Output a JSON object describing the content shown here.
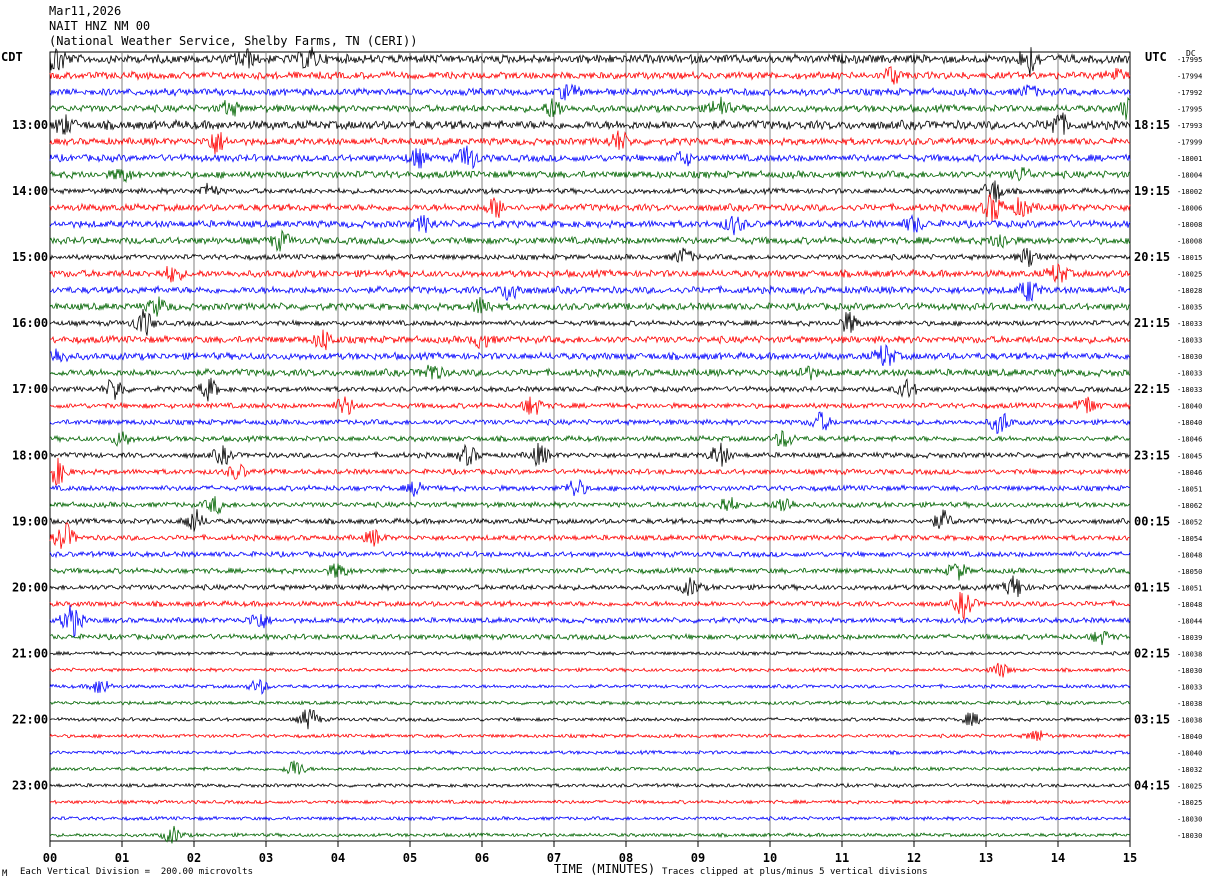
{
  "header": {
    "date": "Mar11,2026",
    "station": "NAIT HNZ NM 00",
    "location": "(National Weather Service, Shelby Farms, TN (CERI))"
  },
  "left_tz": "CDT",
  "right_tz": "UTC",
  "right_unit": "DC",
  "footer": {
    "scale_note": "Each Vertical Division =  200.00 microvolts",
    "clip_note": "Traces clipped at plus/minus 5 vertical divisions",
    "corner_mark": "M"
  },
  "colors": {
    "trace_cycle": [
      "#000000",
      "#ff0000",
      "#0000ff",
      "#006400"
    ],
    "grid": "#808080"
  },
  "chart_data": {
    "type": "line",
    "subtype": "helicorder",
    "xlabel": "TIME (MINUTES)",
    "x_ticks": [
      "00",
      "01",
      "02",
      "03",
      "04",
      "05",
      "06",
      "07",
      "08",
      "09",
      "10",
      "11",
      "12",
      "13",
      "14",
      "15"
    ],
    "xlim": [
      0,
      15
    ],
    "minutes_per_line": 15,
    "line_count": 48,
    "left_time_labels": [
      {
        "line": 4,
        "label": "13:00"
      },
      {
        "line": 8,
        "label": "14:00"
      },
      {
        "line": 12,
        "label": "15:00"
      },
      {
        "line": 16,
        "label": "16:00"
      },
      {
        "line": 20,
        "label": "17:00"
      },
      {
        "line": 24,
        "label": "18:00"
      },
      {
        "line": 28,
        "label": "19:00"
      },
      {
        "line": 32,
        "label": "20:00"
      },
      {
        "line": 36,
        "label": "21:00"
      },
      {
        "line": 40,
        "label": "22:00"
      },
      {
        "line": 44,
        "label": "23:00"
      }
    ],
    "right_time_labels": [
      {
        "line": 4,
        "label": "18:15"
      },
      {
        "line": 8,
        "label": "19:15"
      },
      {
        "line": 12,
        "label": "20:15"
      },
      {
        "line": 16,
        "label": "21:15"
      },
      {
        "line": 20,
        "label": "22:15"
      },
      {
        "line": 24,
        "label": "23:15"
      },
      {
        "line": 28,
        "label": "00:15"
      },
      {
        "line": 32,
        "label": "01:15"
      },
      {
        "line": 36,
        "label": "02:15"
      },
      {
        "line": 40,
        "label": "03:15"
      },
      {
        "line": 44,
        "label": "04:15"
      }
    ],
    "dc_offsets": [
      "-17995",
      "-17994",
      "-17992",
      "-17995",
      "-17993",
      "-17999",
      "-18001",
      "-18004",
      "-18002",
      "-18006",
      "-18008",
      "-18008",
      "-18015",
      "-18025",
      "-18028",
      "-18035",
      "-18033",
      "-18033",
      "-18030",
      "-18033",
      "-18033",
      "-18040",
      "-18040",
      "-18046",
      "-18045",
      "-18046",
      "-18051",
      "-18062",
      "-18052",
      "-18054",
      "-18048",
      "-18050",
      "-18051",
      "-18048",
      "-18044",
      "-18039",
      "-18038",
      "-18030",
      "-18033",
      "-18038",
      "-18038",
      "-18040",
      "-18040",
      "-18032",
      "-18025",
      "-18025",
      "-18030",
      "-18030"
    ],
    "noise_level": [
      5,
      4,
      4,
      4,
      5,
      4,
      4,
      4,
      3,
      4,
      4,
      4,
      3,
      4,
      4,
      4,
      3,
      4,
      4,
      4,
      3,
      3,
      3,
      3,
      3,
      3,
      3,
      3,
      3,
      3,
      3,
      3,
      3,
      3,
      3,
      3,
      2,
      2,
      2,
      2,
      2,
      2,
      2,
      2,
      2,
      2,
      2,
      2
    ],
    "events": [
      {
        "line": 0,
        "minute": 2.7,
        "amp": 9
      },
      {
        "line": 0,
        "minute": 3.6,
        "amp": 10
      },
      {
        "line": 0,
        "minute": 13.6,
        "amp": 14
      },
      {
        "line": 0,
        "minute": 0.1,
        "amp": 12
      },
      {
        "line": 1,
        "minute": 11.7,
        "amp": 8
      },
      {
        "line": 1,
        "minute": 14.8,
        "amp": 6
      },
      {
        "line": 2,
        "minute": 7.2,
        "amp": 7
      },
      {
        "line": 2,
        "minute": 13.6,
        "amp": 5
      },
      {
        "line": 3,
        "minute": 2.5,
        "amp": 7
      },
      {
        "line": 3,
        "minute": 7.0,
        "amp": 9
      },
      {
        "line": 3,
        "minute": 9.3,
        "amp": 10
      },
      {
        "line": 3,
        "minute": 15.0,
        "amp": 11
      },
      {
        "line": 4,
        "minute": 0.2,
        "amp": 8
      },
      {
        "line": 4,
        "minute": 14.0,
        "amp": 11
      },
      {
        "line": 5,
        "minute": 2.3,
        "amp": 11
      },
      {
        "line": 5,
        "minute": 7.9,
        "amp": 9
      },
      {
        "line": 6,
        "minute": 5.1,
        "amp": 8
      },
      {
        "line": 6,
        "minute": 5.8,
        "amp": 12
      },
      {
        "line": 6,
        "minute": 8.8,
        "amp": 6
      },
      {
        "line": 7,
        "minute": 1.0,
        "amp": 6
      },
      {
        "line": 7,
        "minute": 13.5,
        "amp": 6
      },
      {
        "line": 8,
        "minute": 2.2,
        "amp": 7
      },
      {
        "line": 8,
        "minute": 13.1,
        "amp": 12
      },
      {
        "line": 9,
        "minute": 6.2,
        "amp": 9
      },
      {
        "line": 9,
        "minute": 13.1,
        "amp": 13
      },
      {
        "line": 9,
        "minute": 13.5,
        "amp": 8
      },
      {
        "line": 10,
        "minute": 5.2,
        "amp": 7
      },
      {
        "line": 10,
        "minute": 9.5,
        "amp": 8
      },
      {
        "line": 10,
        "minute": 12.0,
        "amp": 7
      },
      {
        "line": 11,
        "minute": 3.2,
        "amp": 8
      },
      {
        "line": 11,
        "minute": 13.2,
        "amp": 7
      },
      {
        "line": 12,
        "minute": 8.8,
        "amp": 8
      },
      {
        "line": 12,
        "minute": 13.6,
        "amp": 9
      },
      {
        "line": 13,
        "minute": 1.7,
        "amp": 7
      },
      {
        "line": 13,
        "minute": 14.0,
        "amp": 9
      },
      {
        "line": 14,
        "minute": 6.4,
        "amp": 10
      },
      {
        "line": 14,
        "minute": 13.6,
        "amp": 10
      },
      {
        "line": 15,
        "minute": 1.5,
        "amp": 8
      },
      {
        "line": 15,
        "minute": 6.0,
        "amp": 8
      },
      {
        "line": 16,
        "minute": 1.3,
        "amp": 13
      },
      {
        "line": 16,
        "minute": 11.1,
        "amp": 10
      },
      {
        "line": 17,
        "minute": 3.8,
        "amp": 9
      },
      {
        "line": 17,
        "minute": 6.0,
        "amp": 7
      },
      {
        "line": 18,
        "minute": 0.1,
        "amp": 7
      },
      {
        "line": 18,
        "minute": 11.6,
        "amp": 11
      },
      {
        "line": 19,
        "minute": 5.3,
        "amp": 8
      },
      {
        "line": 19,
        "minute": 10.5,
        "amp": 6
      },
      {
        "line": 20,
        "minute": 0.9,
        "amp": 11
      },
      {
        "line": 20,
        "minute": 2.2,
        "amp": 10
      },
      {
        "line": 20,
        "minute": 11.9,
        "amp": 9
      },
      {
        "line": 21,
        "minute": 4.1,
        "amp": 9
      },
      {
        "line": 21,
        "minute": 6.7,
        "amp": 9
      },
      {
        "line": 21,
        "minute": 14.4,
        "amp": 9
      },
      {
        "line": 22,
        "minute": 10.7,
        "amp": 9
      },
      {
        "line": 22,
        "minute": 13.2,
        "amp": 11
      },
      {
        "line": 23,
        "minute": 1.0,
        "amp": 7
      },
      {
        "line": 23,
        "minute": 10.2,
        "amp": 8
      },
      {
        "line": 24,
        "minute": 2.4,
        "amp": 8
      },
      {
        "line": 24,
        "minute": 5.8,
        "amp": 9
      },
      {
        "line": 24,
        "minute": 6.8,
        "amp": 10
      },
      {
        "line": 24,
        "minute": 9.3,
        "amp": 11
      },
      {
        "line": 25,
        "minute": 0.1,
        "amp": 12
      },
      {
        "line": 25,
        "minute": 2.6,
        "amp": 7
      },
      {
        "line": 26,
        "minute": 5.1,
        "amp": 7
      },
      {
        "line": 26,
        "minute": 7.3,
        "amp": 9
      },
      {
        "line": 27,
        "minute": 2.3,
        "amp": 8
      },
      {
        "line": 27,
        "minute": 9.4,
        "amp": 8
      },
      {
        "line": 27,
        "minute": 10.2,
        "amp": 8
      },
      {
        "line": 28,
        "minute": 2.0,
        "amp": 11
      },
      {
        "line": 28,
        "minute": 12.4,
        "amp": 9
      },
      {
        "line": 29,
        "minute": 0.2,
        "amp": 14
      },
      {
        "line": 29,
        "minute": 4.5,
        "amp": 7
      },
      {
        "line": 31,
        "minute": 4.0,
        "amp": 7
      },
      {
        "line": 31,
        "minute": 12.6,
        "amp": 8
      },
      {
        "line": 32,
        "minute": 8.9,
        "amp": 8
      },
      {
        "line": 32,
        "minute": 13.4,
        "amp": 11
      },
      {
        "line": 33,
        "minute": 12.7,
        "amp": 13
      },
      {
        "line": 34,
        "minute": 0.3,
        "amp": 16
      },
      {
        "line": 34,
        "minute": 2.9,
        "amp": 9
      },
      {
        "line": 35,
        "minute": 14.6,
        "amp": 6
      },
      {
        "line": 37,
        "minute": 13.2,
        "amp": 7
      },
      {
        "line": 38,
        "minute": 0.7,
        "amp": 8
      },
      {
        "line": 38,
        "minute": 2.9,
        "amp": 7
      },
      {
        "line": 40,
        "minute": 3.6,
        "amp": 11
      },
      {
        "line": 40,
        "minute": 12.8,
        "amp": 6
      },
      {
        "line": 41,
        "minute": 13.7,
        "amp": 6
      },
      {
        "line": 43,
        "minute": 3.4,
        "amp": 9
      },
      {
        "line": 47,
        "minute": 1.7,
        "amp": 8
      }
    ]
  }
}
